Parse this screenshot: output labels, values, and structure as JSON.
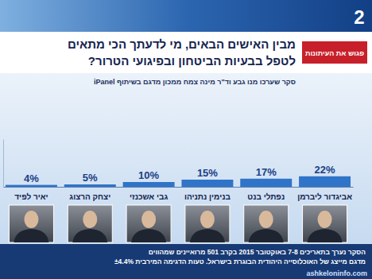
{
  "chart_data": {
    "type": "bar",
    "title": [
      "מבין האישים הבאים, מי לדעתך הכי מתאים",
      "לטפל בבעיות הביטחון ובפיגועי הטרור?"
    ],
    "subtitle": "סקר שערכו מנו גבע וד\"ר מינה צמח ממכון מדגם בשיתוף iPanel",
    "logo": "פגוש את העיתונות",
    "channel": "2",
    "categories": [
      "יאיר לפיד",
      "יצחק הרצוג",
      "גבי אשכנזי",
      "בנימין נתניהו",
      "נפתלי בנט",
      "אביגדור ליברמן"
    ],
    "values": [
      4,
      5,
      10,
      15,
      17,
      22
    ],
    "value_labels": [
      "4%",
      "5%",
      "10%",
      "15%",
      "17%",
      "22%"
    ],
    "data_labels": true,
    "color": "#2f74c8",
    "ylim": [
      0,
      100
    ],
    "tick_labels": "x",
    "footnote": [
      "הסקר נערך בתאריכים 7-8 באוקטובר 2015 בקרב 501 מרואיינים שמהווים",
      "מדגם מייצג של האוכלוסייה היהודית הבוגרת בישראל. טעות הדגימה המירבית ±4.4%"
    ],
    "watermark": "ashkeloninfo.com"
  }
}
